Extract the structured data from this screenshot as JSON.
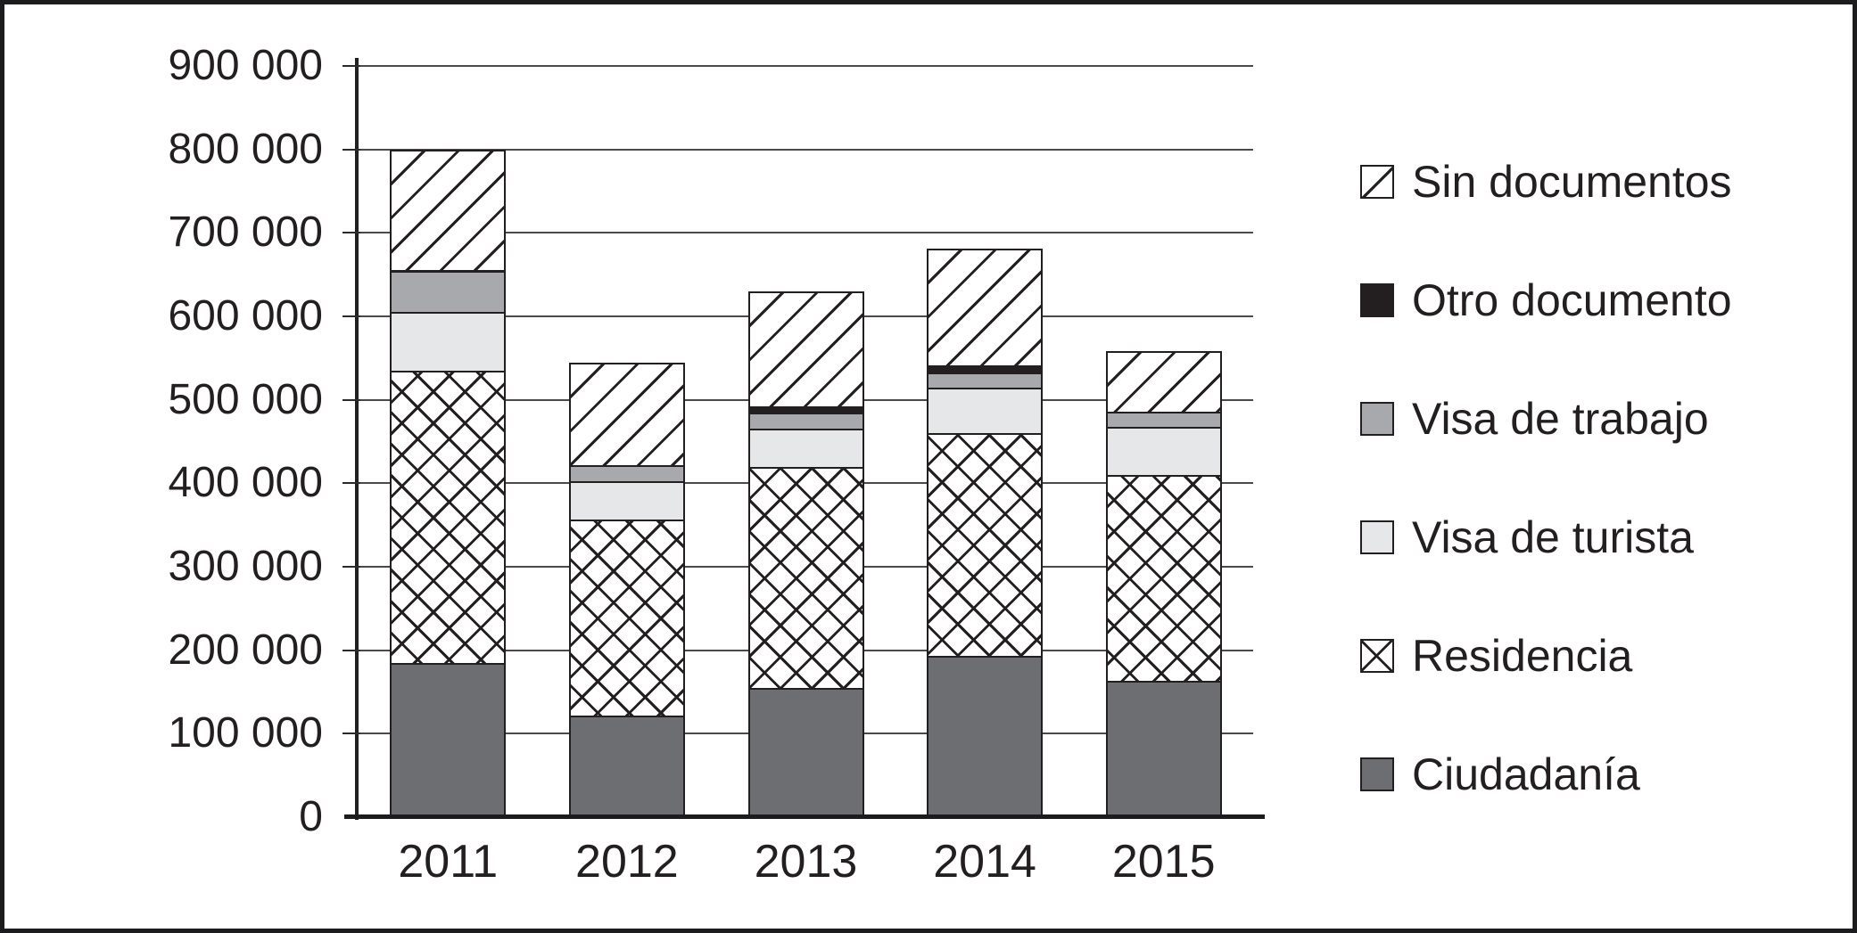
{
  "figure": {
    "background": "#ffffff",
    "frame_color": "#1c1c1e",
    "text_color": "#231f20",
    "gridline_color": "#4a4a4c"
  },
  "chart_data": {
    "type": "bar",
    "stacked": true,
    "grid": true,
    "legend_position": "right",
    "categories": [
      "2011",
      "2012",
      "2013",
      "2014",
      "2015"
    ],
    "series": [
      {
        "name": "Ciudadanía",
        "key": "ciudadania",
        "pattern": "darkgray",
        "color": "#6d6e71",
        "values": [
          185000,
          122000,
          155000,
          193000,
          163000
        ]
      },
      {
        "name": "Residencia",
        "key": "residencia",
        "pattern": "crosshatch",
        "color": "#ffffff",
        "values": [
          350000,
          235000,
          265000,
          267000,
          247000
        ]
      },
      {
        "name": "Visa de turista",
        "key": "visa-de-turista",
        "pattern": "lightgray",
        "color": "#e6e7e8",
        "values": [
          70000,
          45000,
          45000,
          55000,
          58000
        ]
      },
      {
        "name": "Visa de trabajo",
        "key": "visa-de-trabajo",
        "pattern": "gray",
        "color": "#a7a9ac",
        "values": [
          50000,
          20000,
          20000,
          18000,
          18000
        ]
      },
      {
        "name": "Otro documento",
        "key": "otro-documento",
        "pattern": "black",
        "color": "#231f20",
        "values": [
          0,
          0,
          7000,
          8000,
          0
        ]
      },
      {
        "name": "Sin documentos",
        "key": "sin-documentos",
        "pattern": "diagonal",
        "color": "#ffffff",
        "values": [
          145000,
          123000,
          138000,
          140000,
          72000
        ]
      }
    ],
    "totals": [
      800000,
      545000,
      630000,
      681000,
      558000
    ],
    "y_axis": {
      "min": 0,
      "max": 900000,
      "tick_step": 100000,
      "tick_labels": [
        "900 000",
        "800 000",
        "700 000",
        "600 000",
        "500 000",
        "400 000",
        "300 000",
        "200 000",
        "100 000",
        "0"
      ]
    },
    "legend": [
      {
        "label": "Sin documentos",
        "pattern": "diagonal"
      },
      {
        "label": "Otro documento",
        "pattern": "black"
      },
      {
        "label": "Visa de trabajo",
        "pattern": "gray"
      },
      {
        "label": "Visa de turista",
        "pattern": "lightgray"
      },
      {
        "label": "Residencia",
        "pattern": "crosshatch"
      },
      {
        "label": "Ciudadanía",
        "pattern": "darkgray"
      }
    ]
  }
}
